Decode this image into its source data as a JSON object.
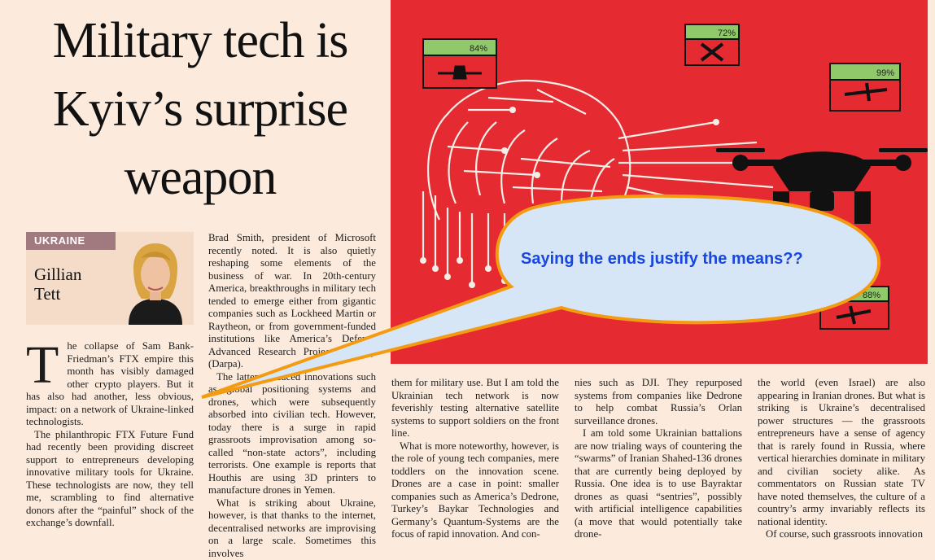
{
  "headline": [
    "Military tech is",
    "Kyiv’s surprise",
    "weapon"
  ],
  "section_tag": "UKRAINE",
  "author": [
    "Gillian",
    "Tett"
  ],
  "graphic": {
    "percentages": [
      "84%",
      "72%",
      "99%",
      "88%"
    ],
    "background_color": "#e62a31"
  },
  "callout": "Saying the ends justify the means??",
  "column1": {
    "dropcap": "T",
    "p1": "he collapse of Sam Bank-Friedman’s FTX empire this month has visibly damaged other crypto players. But it has also had another, less obvious, impact: on a network of Ukraine-linked technologists.",
    "p2": "The philanthropic FTX Future Fund had recently been providing discreet support to entrepreneurs developing innovative military tools for Ukraine. These technologists are now, they tell me, scrambling to find alternative donors after the “painful” shock of the exchange’s downfall."
  },
  "column2": {
    "p1": "Brad Smith, president of Microsoft recently noted. It is also quietly reshaping some elements of the business of war. In 20th-century America, breakthroughs in military tech tended to emerge either from gigantic companies such as Lockheed Martin or Raytheon, or from government-funded institutions like America’s Defense Advanced Research Projects Agency (Darpa).",
    "p2": "The latter produced innovations such as global positioning systems and drones, which were subsequently absorbed into civilian tech. However, today there is a surge in rapid grassroots improvisation among so-called “non-state actors”, including terrorists. One example is reports that Houthis are using 3D printers to manufacture drones in Yemen.",
    "p3": "What is striking about Ukraine, however, is that thanks to the internet, decentralised networks are improvising on a large scale. Sometimes this involves"
  },
  "column3": {
    "p1": "them for military use. But I am told the Ukrainian tech network is now feverishly testing alternative satellite systems to support soldiers on the front line.",
    "p2": "What is more noteworthy, however, is the role of young tech companies, mere toddlers on the innovation scene. Drones are a case in point: smaller companies such as America’s Dedrone, Turkey’s Baykar Technologies and Germany’s Quantum-Systems are the focus of rapid innovation. And con-"
  },
  "column4": {
    "p1": "nies such as DJI. They repurposed systems from companies like Dedrone to help combat Russia’s Orlan surveillance drones.",
    "p2": "I am told some Ukrainian battalions are now trialing ways of countering the “swarms” of Iranian Shahed-136 drones that are currently being deployed by Russia. One idea is to use Bayraktar drones as quasi “sentries”, possibly with artificial intelligence capabilities (a move that would potentially take drone-"
  },
  "column5": {
    "p1": "the world (even Israel) are also appearing in Iranian drones. But what is striking is Ukraine’s decentralised power structures — the grassroots entrepreneurs have a sense of agency that is rarely found in Russia, where vertical hierarchies dominate in military and civilian society alike. As commentators on Russian state TV have noted themselves, the culture of a country’s army invariably reflects its national identity.",
    "p2": "Of course, such grassroots innovation"
  }
}
